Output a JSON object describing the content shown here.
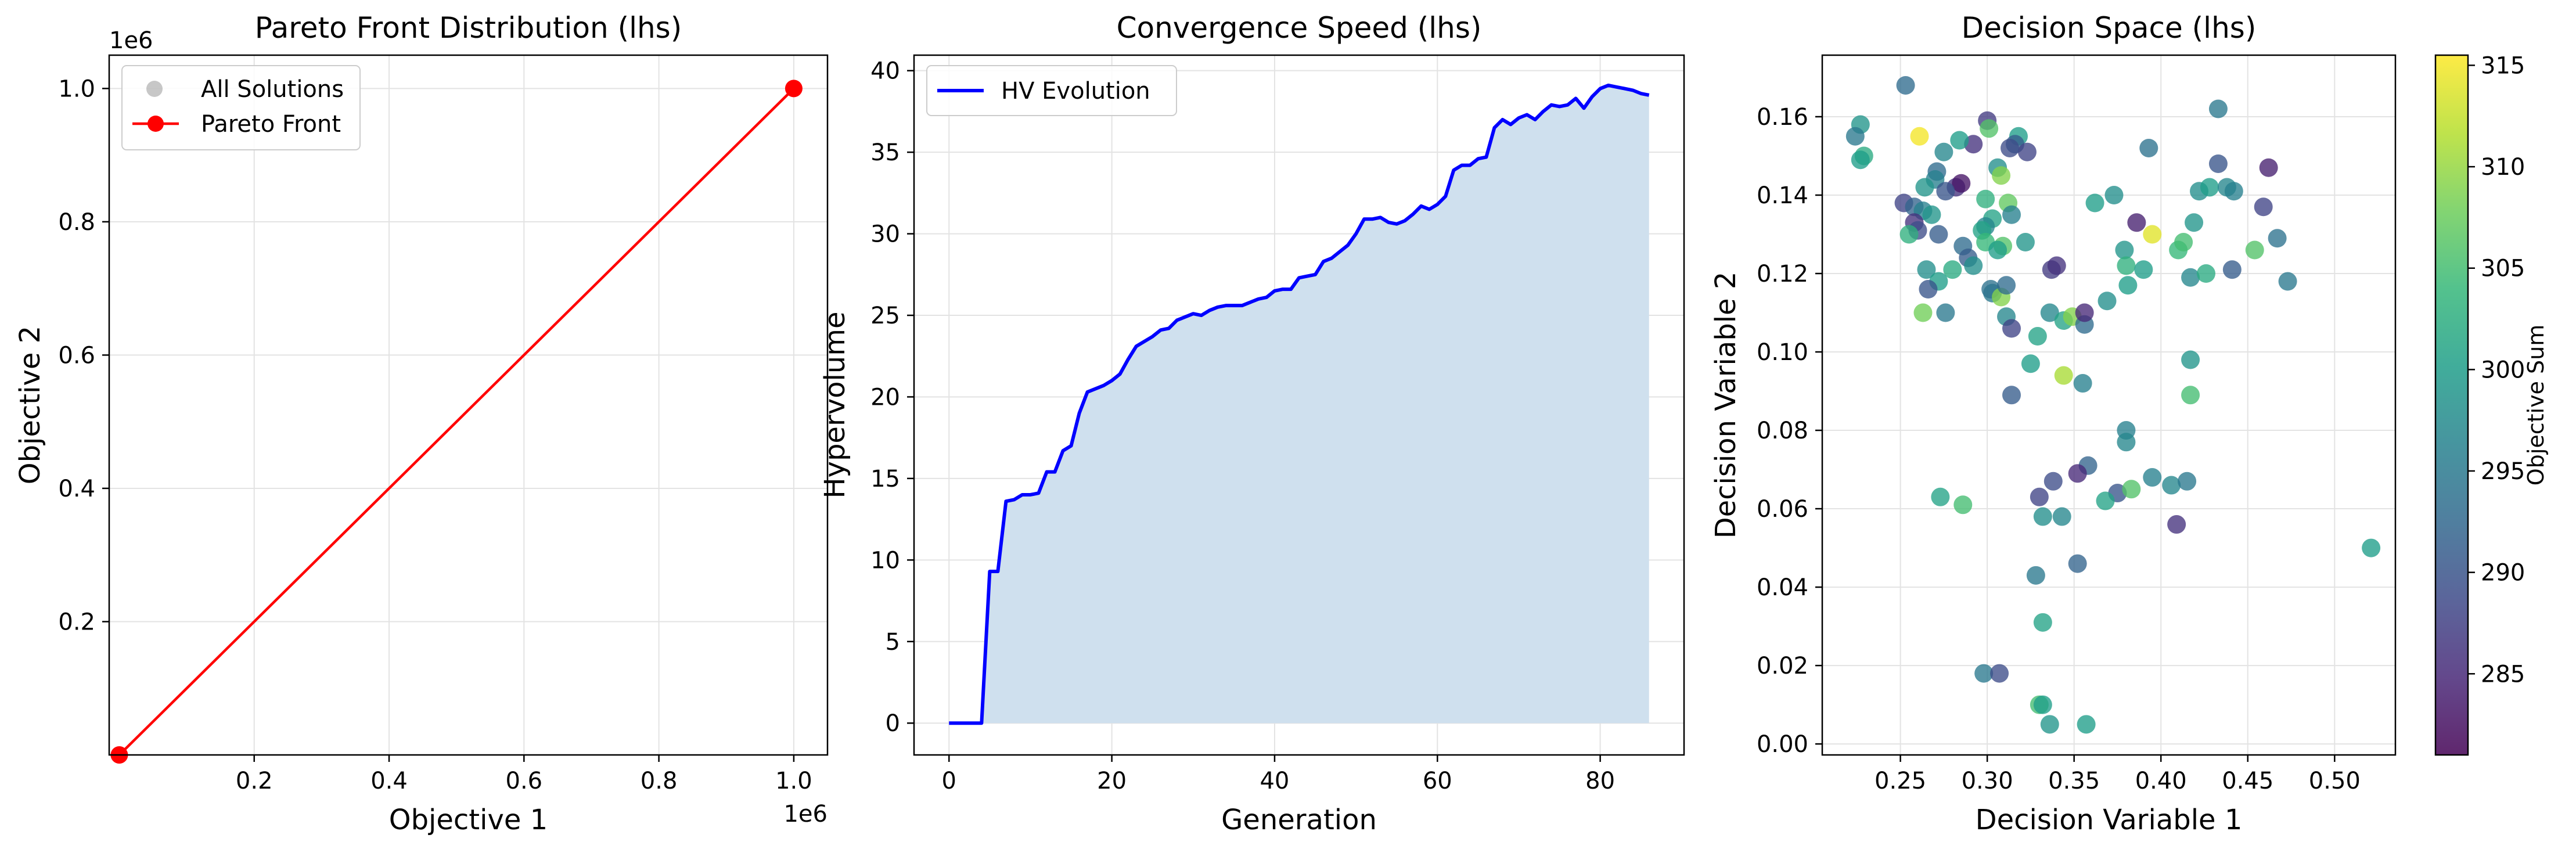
{
  "chart_data": [
    {
      "type": "line",
      "title": "Pareto Front Distribution (lhs)",
      "xlabel": "Objective 1",
      "ylabel": "Objective 2",
      "x_offset_label": "1e6",
      "y_offset_label": "1e6",
      "xlim": [
        -0.015,
        1.05
      ],
      "ylim": [
        0.0,
        1.05
      ],
      "xticks": [
        0.2,
        0.4,
        0.6,
        0.8,
        1.0
      ],
      "yticks": [
        0.2,
        0.4,
        0.6,
        0.8,
        1.0
      ],
      "tick_labels_x": [
        "0.2",
        "0.4",
        "0.6",
        "0.8",
        "1.0"
      ],
      "tick_labels_y": [
        "0.2",
        "0.4",
        "0.6",
        "0.8",
        "1.0"
      ],
      "grid": true,
      "legend_position": "top-left",
      "series": [
        {
          "name": "All Solutions",
          "kind": "scatter",
          "color": "#999999",
          "x": [
            0,
            1.0
          ],
          "y": [
            0,
            1.0
          ]
        },
        {
          "name": "Pareto Front",
          "kind": "line-marker",
          "color": "#ff0000",
          "x": [
            0,
            1.0
          ],
          "y": [
            0,
            1.0
          ]
        }
      ]
    },
    {
      "type": "area",
      "title": "Convergence Speed (lhs)",
      "xlabel": "Generation",
      "ylabel": "Hypervolume",
      "xlim": [
        -4.3,
        90.3
      ],
      "ylim": [
        -1.95,
        40.95
      ],
      "xticks": [
        0,
        20,
        40,
        60,
        80
      ],
      "yticks": [
        0,
        5,
        10,
        15,
        20,
        25,
        30,
        35,
        40
      ],
      "tick_labels_x": [
        "0",
        "20",
        "40",
        "60",
        "80"
      ],
      "tick_labels_y": [
        "0",
        "5",
        "10",
        "15",
        "20",
        "25",
        "30",
        "35",
        "40"
      ],
      "grid": true,
      "legend_position": "top-left",
      "line_color": "#0000ff",
      "fill_color": "#cfe0ee",
      "series": [
        {
          "name": "HV Evolution",
          "x": [
            0,
            1,
            2,
            3,
            4,
            5,
            6,
            7,
            8,
            9,
            10,
            11,
            12,
            13,
            14,
            15,
            16,
            17,
            18,
            19,
            20,
            21,
            22,
            23,
            24,
            25,
            26,
            27,
            28,
            29,
            30,
            31,
            32,
            33,
            34,
            35,
            36,
            37,
            38,
            39,
            40,
            41,
            42,
            43,
            44,
            45,
            46,
            47,
            48,
            49,
            50,
            51,
            52,
            53,
            54,
            55,
            56,
            57,
            58,
            59,
            60,
            61,
            62,
            63,
            64,
            65,
            66,
            67,
            68,
            69,
            70,
            71,
            72,
            73,
            74,
            75,
            76,
            77,
            78,
            79,
            80,
            81,
            82,
            83,
            84,
            85,
            86
          ],
          "y": [
            0,
            0,
            0,
            0,
            0,
            9.3,
            9.3,
            13.6,
            13.7,
            14,
            14,
            14.1,
            15.4,
            15.4,
            16.7,
            17,
            19,
            20.3,
            20.5,
            20.7,
            21,
            21.4,
            22.3,
            23.1,
            23.4,
            23.7,
            24.1,
            24.2,
            24.7,
            24.9,
            25.1,
            25,
            25.3,
            25.5,
            25.6,
            25.6,
            25.6,
            25.8,
            26,
            26.1,
            26.5,
            26.6,
            26.6,
            27.3,
            27.4,
            27.5,
            28.3,
            28.5,
            28.9,
            29.3,
            30,
            30.9,
            30.9,
            31,
            30.7,
            30.6,
            30.8,
            31.2,
            31.7,
            31.5,
            31.8,
            32.3,
            33.9,
            34.2,
            34.2,
            34.6,
            34.7,
            36.5,
            37,
            36.7,
            37.1,
            37.3,
            37,
            37.5,
            37.9,
            37.8,
            37.9,
            38.3,
            37.7,
            38.4,
            38.9,
            39.1,
            39,
            38.9,
            38.8,
            38.6,
            38.5
          ]
        }
      ]
    },
    {
      "type": "scatter",
      "title": "Decision Space (lhs)",
      "xlabel": "Decision Variable 1",
      "ylabel": "Decision Variable 2",
      "colorbar_label": "Objective Sum",
      "colormap": "viridis",
      "clim": [
        281,
        315.5
      ],
      "xlim": [
        0.205,
        0.535
      ],
      "ylim": [
        -0.0028,
        0.1757
      ],
      "xticks": [
        0.25,
        0.3,
        0.35,
        0.4,
        0.45,
        0.5
      ],
      "yticks": [
        0.0,
        0.02,
        0.04,
        0.06,
        0.08,
        0.1,
        0.12,
        0.14,
        0.16
      ],
      "tick_labels_x": [
        "0.25",
        "0.30",
        "0.35",
        "0.40",
        "0.45",
        "0.50"
      ],
      "tick_labels_y": [
        "0.00",
        "0.02",
        "0.04",
        "0.06",
        "0.08",
        "0.10",
        "0.12",
        "0.14",
        "0.16"
      ],
      "colorbar_ticks": [
        285,
        290,
        295,
        300,
        305,
        310,
        315
      ],
      "colorbar_tick_labels": [
        "285",
        "290",
        "295",
        "300",
        "305",
        "310",
        "315"
      ],
      "grid": true,
      "points": [
        {
          "x": 0.253,
          "y": 0.168,
          "c": 293
        },
        {
          "x": 0.227,
          "y": 0.158,
          "c": 299
        },
        {
          "x": 0.224,
          "y": 0.155,
          "c": 295
        },
        {
          "x": 0.229,
          "y": 0.15,
          "c": 302
        },
        {
          "x": 0.227,
          "y": 0.149,
          "c": 300
        },
        {
          "x": 0.261,
          "y": 0.155,
          "c": 315
        },
        {
          "x": 0.292,
          "y": 0.153,
          "c": 286
        },
        {
          "x": 0.3,
          "y": 0.159,
          "c": 287
        },
        {
          "x": 0.301,
          "y": 0.157,
          "c": 306
        },
        {
          "x": 0.318,
          "y": 0.155,
          "c": 300
        },
        {
          "x": 0.316,
          "y": 0.153,
          "c": 291
        },
        {
          "x": 0.323,
          "y": 0.151,
          "c": 288
        },
        {
          "x": 0.313,
          "y": 0.152,
          "c": 289
        },
        {
          "x": 0.275,
          "y": 0.151,
          "c": 297
        },
        {
          "x": 0.284,
          "y": 0.154,
          "c": 300
        },
        {
          "x": 0.306,
          "y": 0.147,
          "c": 298
        },
        {
          "x": 0.308,
          "y": 0.145,
          "c": 309
        },
        {
          "x": 0.271,
          "y": 0.146,
          "c": 293
        },
        {
          "x": 0.27,
          "y": 0.144,
          "c": 296
        },
        {
          "x": 0.264,
          "y": 0.142,
          "c": 299
        },
        {
          "x": 0.282,
          "y": 0.142,
          "c": 286
        },
        {
          "x": 0.285,
          "y": 0.143,
          "c": 283
        },
        {
          "x": 0.276,
          "y": 0.141,
          "c": 290
        },
        {
          "x": 0.252,
          "y": 0.138,
          "c": 288
        },
        {
          "x": 0.258,
          "y": 0.137,
          "c": 292
        },
        {
          "x": 0.263,
          "y": 0.136,
          "c": 296
        },
        {
          "x": 0.268,
          "y": 0.135,
          "c": 299
        },
        {
          "x": 0.258,
          "y": 0.133,
          "c": 286
        },
        {
          "x": 0.26,
          "y": 0.131,
          "c": 289
        },
        {
          "x": 0.255,
          "y": 0.13,
          "c": 303
        },
        {
          "x": 0.272,
          "y": 0.13,
          "c": 291
        },
        {
          "x": 0.286,
          "y": 0.127,
          "c": 293
        },
        {
          "x": 0.299,
          "y": 0.139,
          "c": 303
        },
        {
          "x": 0.303,
          "y": 0.134,
          "c": 301
        },
        {
          "x": 0.312,
          "y": 0.138,
          "c": 307
        },
        {
          "x": 0.314,
          "y": 0.135,
          "c": 296
        },
        {
          "x": 0.299,
          "y": 0.132,
          "c": 297
        },
        {
          "x": 0.297,
          "y": 0.131,
          "c": 301
        },
        {
          "x": 0.299,
          "y": 0.128,
          "c": 304
        },
        {
          "x": 0.309,
          "y": 0.127,
          "c": 306
        },
        {
          "x": 0.306,
          "y": 0.126,
          "c": 300
        },
        {
          "x": 0.322,
          "y": 0.128,
          "c": 299
        },
        {
          "x": 0.289,
          "y": 0.124,
          "c": 291
        },
        {
          "x": 0.292,
          "y": 0.122,
          "c": 298
        },
        {
          "x": 0.28,
          "y": 0.121,
          "c": 302
        },
        {
          "x": 0.265,
          "y": 0.121,
          "c": 298
        },
        {
          "x": 0.272,
          "y": 0.118,
          "c": 300
        },
        {
          "x": 0.266,
          "y": 0.116,
          "c": 290
        },
        {
          "x": 0.303,
          "y": 0.115,
          "c": 295
        },
        {
          "x": 0.302,
          "y": 0.116,
          "c": 294
        },
        {
          "x": 0.308,
          "y": 0.114,
          "c": 309
        },
        {
          "x": 0.311,
          "y": 0.117,
          "c": 293
        },
        {
          "x": 0.311,
          "y": 0.109,
          "c": 297
        },
        {
          "x": 0.314,
          "y": 0.106,
          "c": 288
        },
        {
          "x": 0.263,
          "y": 0.11,
          "c": 308
        },
        {
          "x": 0.276,
          "y": 0.11,
          "c": 295
        },
        {
          "x": 0.337,
          "y": 0.121,
          "c": 287
        },
        {
          "x": 0.34,
          "y": 0.122,
          "c": 286
        },
        {
          "x": 0.336,
          "y": 0.11,
          "c": 297
        },
        {
          "x": 0.344,
          "y": 0.108,
          "c": 301
        },
        {
          "x": 0.349,
          "y": 0.109,
          "c": 309
        },
        {
          "x": 0.356,
          "y": 0.107,
          "c": 293
        },
        {
          "x": 0.356,
          "y": 0.11,
          "c": 285
        },
        {
          "x": 0.329,
          "y": 0.104,
          "c": 301
        },
        {
          "x": 0.325,
          "y": 0.097,
          "c": 300
        },
        {
          "x": 0.314,
          "y": 0.089,
          "c": 291
        },
        {
          "x": 0.344,
          "y": 0.094,
          "c": 311
        },
        {
          "x": 0.355,
          "y": 0.092,
          "c": 296
        },
        {
          "x": 0.362,
          "y": 0.138,
          "c": 300
        },
        {
          "x": 0.373,
          "y": 0.14,
          "c": 298
        },
        {
          "x": 0.386,
          "y": 0.133,
          "c": 284
        },
        {
          "x": 0.393,
          "y": 0.152,
          "c": 294
        },
        {
          "x": 0.379,
          "y": 0.126,
          "c": 299
        },
        {
          "x": 0.38,
          "y": 0.122,
          "c": 303
        },
        {
          "x": 0.381,
          "y": 0.117,
          "c": 300
        },
        {
          "x": 0.39,
          "y": 0.121,
          "c": 300
        },
        {
          "x": 0.369,
          "y": 0.113,
          "c": 298
        },
        {
          "x": 0.395,
          "y": 0.13,
          "c": 314
        },
        {
          "x": 0.41,
          "y": 0.126,
          "c": 304
        },
        {
          "x": 0.413,
          "y": 0.128,
          "c": 305
        },
        {
          "x": 0.419,
          "y": 0.133,
          "c": 299
        },
        {
          "x": 0.417,
          "y": 0.119,
          "c": 297
        },
        {
          "x": 0.426,
          "y": 0.12,
          "c": 302
        },
        {
          "x": 0.422,
          "y": 0.141,
          "c": 298
        },
        {
          "x": 0.428,
          "y": 0.142,
          "c": 300
        },
        {
          "x": 0.433,
          "y": 0.148,
          "c": 290
        },
        {
          "x": 0.433,
          "y": 0.162,
          "c": 295
        },
        {
          "x": 0.438,
          "y": 0.142,
          "c": 297
        },
        {
          "x": 0.442,
          "y": 0.141,
          "c": 296
        },
        {
          "x": 0.441,
          "y": 0.121,
          "c": 291
        },
        {
          "x": 0.454,
          "y": 0.126,
          "c": 306
        },
        {
          "x": 0.459,
          "y": 0.137,
          "c": 288
        },
        {
          "x": 0.462,
          "y": 0.147,
          "c": 284
        },
        {
          "x": 0.467,
          "y": 0.129,
          "c": 294
        },
        {
          "x": 0.473,
          "y": 0.118,
          "c": 295
        },
        {
          "x": 0.417,
          "y": 0.098,
          "c": 299
        },
        {
          "x": 0.417,
          "y": 0.089,
          "c": 305
        },
        {
          "x": 0.38,
          "y": 0.08,
          "c": 296
        },
        {
          "x": 0.38,
          "y": 0.077,
          "c": 297
        },
        {
          "x": 0.358,
          "y": 0.071,
          "c": 292
        },
        {
          "x": 0.352,
          "y": 0.069,
          "c": 285
        },
        {
          "x": 0.338,
          "y": 0.067,
          "c": 289
        },
        {
          "x": 0.375,
          "y": 0.064,
          "c": 290
        },
        {
          "x": 0.383,
          "y": 0.065,
          "c": 306
        },
        {
          "x": 0.395,
          "y": 0.068,
          "c": 296
        },
        {
          "x": 0.406,
          "y": 0.066,
          "c": 297
        },
        {
          "x": 0.415,
          "y": 0.067,
          "c": 295
        },
        {
          "x": 0.409,
          "y": 0.056,
          "c": 286
        },
        {
          "x": 0.368,
          "y": 0.062,
          "c": 301
        },
        {
          "x": 0.33,
          "y": 0.063,
          "c": 288
        },
        {
          "x": 0.273,
          "y": 0.063,
          "c": 301
        },
        {
          "x": 0.286,
          "y": 0.061,
          "c": 305
        },
        {
          "x": 0.332,
          "y": 0.058,
          "c": 298
        },
        {
          "x": 0.343,
          "y": 0.058,
          "c": 297
        },
        {
          "x": 0.352,
          "y": 0.046,
          "c": 292
        },
        {
          "x": 0.328,
          "y": 0.043,
          "c": 295
        },
        {
          "x": 0.332,
          "y": 0.031,
          "c": 301
        },
        {
          "x": 0.298,
          "y": 0.018,
          "c": 295
        },
        {
          "x": 0.307,
          "y": 0.018,
          "c": 289
        },
        {
          "x": 0.33,
          "y": 0.01,
          "c": 305
        },
        {
          "x": 0.332,
          "y": 0.01,
          "c": 300
        },
        {
          "x": 0.336,
          "y": 0.005,
          "c": 299
        },
        {
          "x": 0.357,
          "y": 0.005,
          "c": 300
        },
        {
          "x": 0.521,
          "y": 0.05,
          "c": 300
        }
      ]
    }
  ]
}
